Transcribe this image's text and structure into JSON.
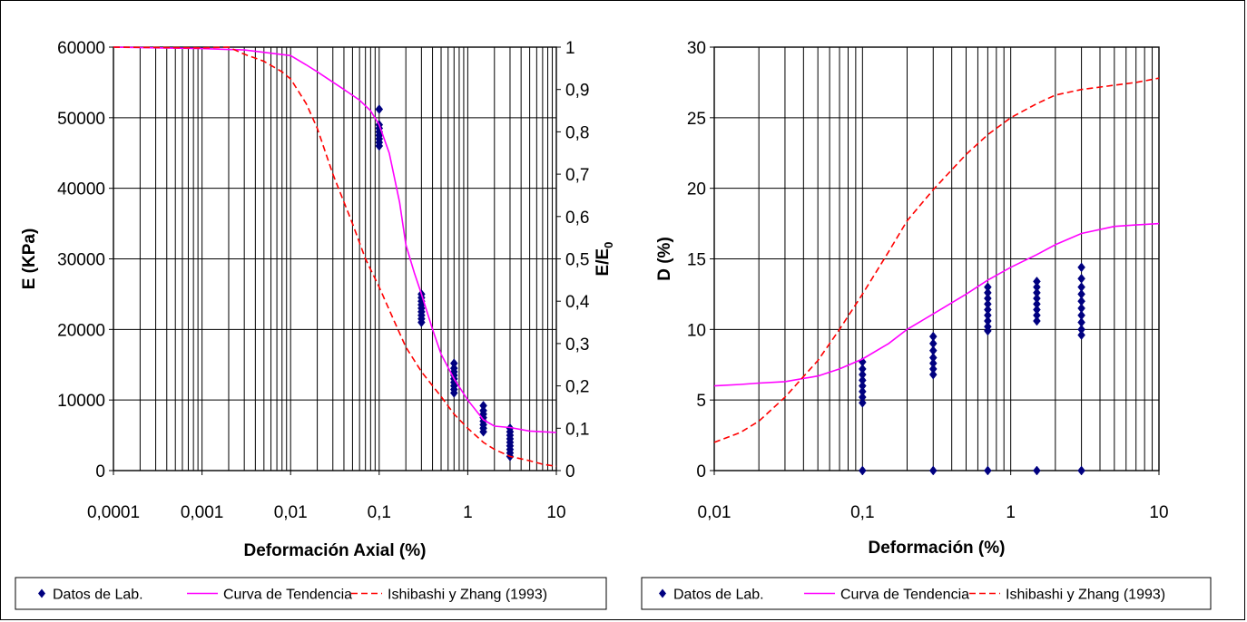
{
  "chart_data": [
    {
      "type": "scatter",
      "xscale": "log",
      "xlim": [
        0.0001,
        10
      ],
      "ylim": [
        0,
        60000
      ],
      "y2lim": [
        0,
        1
      ],
      "xlabel": "Deformación Axial (%)",
      "ylabel": "E (KPa)",
      "y2label_main": "E/E",
      "y2label_sub": "0",
      "xticks": [
        "0,0001",
        "0,001",
        "0,01",
        "0,1",
        "1",
        "10"
      ],
      "yticks": [
        "0",
        "10000",
        "20000",
        "30000",
        "40000",
        "50000",
        "60000"
      ],
      "y2ticks": [
        "0",
        "0,1",
        "0,2",
        "0,3",
        "0,4",
        "0,5",
        "0,6",
        "0,7",
        "0,8",
        "0,9",
        "1"
      ],
      "grid": true,
      "legend_position": "bottom",
      "legend": [
        "Datos de Lab.",
        "Curva de Tendencia",
        "Ishibashi y Zhang (1993)"
      ],
      "series": [
        {
          "name": "Datos de Lab.",
          "type": "scatter",
          "color": "#000080",
          "points": [
            [
              0.1,
              51200
            ],
            [
              0.1,
              49000
            ],
            [
              0.1,
              48500
            ],
            [
              0.1,
              48000
            ],
            [
              0.1,
              47500
            ],
            [
              0.1,
              47000
            ],
            [
              0.1,
              46500
            ],
            [
              0.1,
              46000
            ],
            [
              0.3,
              25000
            ],
            [
              0.3,
              24500
            ],
            [
              0.3,
              24000
            ],
            [
              0.3,
              23500
            ],
            [
              0.3,
              23000
            ],
            [
              0.3,
              22500
            ],
            [
              0.3,
              22000
            ],
            [
              0.3,
              21500
            ],
            [
              0.3,
              21000
            ],
            [
              0.7,
              15200
            ],
            [
              0.7,
              14500
            ],
            [
              0.7,
              14000
            ],
            [
              0.7,
              13500
            ],
            [
              0.7,
              13000
            ],
            [
              0.7,
              12500
            ],
            [
              0.7,
              12000
            ],
            [
              0.7,
              11500
            ],
            [
              0.7,
              11000
            ],
            [
              1.5,
              9200
            ],
            [
              1.5,
              8500
            ],
            [
              1.5,
              8000
            ],
            [
              1.5,
              7500
            ],
            [
              1.5,
              7000
            ],
            [
              1.5,
              6500
            ],
            [
              1.5,
              6000
            ],
            [
              1.5,
              5500
            ],
            [
              3,
              6000
            ],
            [
              3,
              5500
            ],
            [
              3,
              5000
            ],
            [
              3,
              4500
            ],
            [
              3,
              4000
            ],
            [
              3,
              3500
            ],
            [
              3,
              3000
            ],
            [
              3,
              2500
            ],
            [
              3,
              2000
            ]
          ]
        },
        {
          "name": "Curva de Tendencia",
          "type": "line",
          "color": "#ff00ff",
          "dash": "solid",
          "points": [
            [
              0.0001,
              60000
            ],
            [
              0.001,
              59800
            ],
            [
              0.003,
              59600
            ],
            [
              0.01,
              58800
            ],
            [
              0.015,
              57500
            ],
            [
              0.02,
              56500
            ],
            [
              0.04,
              54000
            ],
            [
              0.06,
              52500
            ],
            [
              0.08,
              51000
            ],
            [
              0.1,
              49000
            ],
            [
              0.13,
              45000
            ],
            [
              0.17,
              38000
            ],
            [
              0.2,
              32000
            ],
            [
              0.25,
              28000
            ],
            [
              0.3,
              25000
            ],
            [
              0.4,
              20000
            ],
            [
              0.5,
              16500
            ],
            [
              0.7,
              13000
            ],
            [
              1,
              10000
            ],
            [
              1.5,
              7200
            ],
            [
              2,
              6300
            ],
            [
              3,
              6100
            ],
            [
              5,
              5600
            ],
            [
              7,
              5500
            ],
            [
              10,
              5400
            ]
          ]
        },
        {
          "name": "Ishibashi y Zhang (1993)",
          "type": "line",
          "color": "#ff0000",
          "dash": "dashed",
          "points": [
            [
              0.0001,
              60000
            ],
            [
              0.001,
              59900
            ],
            [
              0.002,
              60000
            ],
            [
              0.003,
              59000
            ],
            [
              0.005,
              58000
            ],
            [
              0.008,
              56500
            ],
            [
              0.01,
              55500
            ],
            [
              0.015,
              52000
            ],
            [
              0.02,
              48500
            ],
            [
              0.03,
              42000
            ],
            [
              0.05,
              35000
            ],
            [
              0.07,
              30000
            ],
            [
              0.1,
              26000
            ],
            [
              0.15,
              21000
            ],
            [
              0.2,
              17500
            ],
            [
              0.3,
              14000
            ],
            [
              0.5,
              10500
            ],
            [
              0.7,
              8000
            ],
            [
              1,
              6000
            ],
            [
              1.5,
              4000
            ],
            [
              2,
              3000
            ],
            [
              3,
              2000
            ],
            [
              5,
              1400
            ],
            [
              7,
              900
            ],
            [
              10,
              600
            ]
          ]
        }
      ]
    },
    {
      "type": "scatter",
      "xscale": "log",
      "xlim": [
        0.01,
        10
      ],
      "ylim": [
        0,
        30
      ],
      "xlabel": "Deformación (%)",
      "ylabel": "D (%)",
      "xticks": [
        "0,01",
        "0,1",
        "1",
        "10"
      ],
      "yticks": [
        "0",
        "5",
        "10",
        "15",
        "20",
        "25",
        "30"
      ],
      "grid": true,
      "legend_position": "bottom",
      "legend": [
        "Datos de Lab.",
        "Curva de Tendencia",
        "Ishibashi y Zhang (1993)"
      ],
      "series": [
        {
          "name": "Datos de Lab.",
          "type": "scatter",
          "color": "#000080",
          "points": [
            [
              0.1,
              0
            ],
            [
              0.1,
              7.7
            ],
            [
              0.1,
              7.2
            ],
            [
              0.1,
              6.8
            ],
            [
              0.1,
              6.4
            ],
            [
              0.1,
              6.0
            ],
            [
              0.1,
              5.6
            ],
            [
              0.1,
              5.2
            ],
            [
              0.1,
              4.8
            ],
            [
              0.3,
              0
            ],
            [
              0.3,
              9.5
            ],
            [
              0.3,
              9.0
            ],
            [
              0.3,
              8.5
            ],
            [
              0.3,
              8.0
            ],
            [
              0.3,
              7.6
            ],
            [
              0.3,
              7.2
            ],
            [
              0.3,
              6.8
            ],
            [
              0.7,
              0
            ],
            [
              0.7,
              13.0
            ],
            [
              0.7,
              12.6
            ],
            [
              0.7,
              12.2
            ],
            [
              0.7,
              11.8
            ],
            [
              0.7,
              11.4
            ],
            [
              0.7,
              11.0
            ],
            [
              0.7,
              10.6
            ],
            [
              0.7,
              10.2
            ],
            [
              0.7,
              9.9
            ],
            [
              1.5,
              0
            ],
            [
              1.5,
              13.4
            ],
            [
              1.5,
              13.0
            ],
            [
              1.5,
              12.6
            ],
            [
              1.5,
              12.2
            ],
            [
              1.5,
              11.8
            ],
            [
              1.5,
              11.4
            ],
            [
              1.5,
              11.0
            ],
            [
              1.5,
              10.6
            ],
            [
              3,
              0
            ],
            [
              3,
              14.4
            ],
            [
              3,
              13.6
            ],
            [
              3,
              13.0
            ],
            [
              3,
              12.5
            ],
            [
              3,
              12.0
            ],
            [
              3,
              11.5
            ],
            [
              3,
              11.0
            ],
            [
              3,
              10.5
            ],
            [
              3,
              10.0
            ],
            [
              3,
              9.6
            ]
          ]
        },
        {
          "name": "Curva de Tendencia",
          "type": "line",
          "color": "#ff00ff",
          "dash": "solid",
          "points": [
            [
              0.01,
              6.0
            ],
            [
              0.015,
              6.1
            ],
            [
              0.02,
              6.2
            ],
            [
              0.03,
              6.3
            ],
            [
              0.05,
              6.7
            ],
            [
              0.07,
              7.2
            ],
            [
              0.1,
              7.9
            ],
            [
              0.15,
              9.0
            ],
            [
              0.2,
              10.0
            ],
            [
              0.3,
              11.1
            ],
            [
              0.5,
              12.5
            ],
            [
              0.7,
              13.5
            ],
            [
              1,
              14.4
            ],
            [
              1.5,
              15.3
            ],
            [
              2,
              16.0
            ],
            [
              3,
              16.8
            ],
            [
              5,
              17.3
            ],
            [
              7,
              17.4
            ],
            [
              10,
              17.5
            ]
          ]
        },
        {
          "name": "Ishibashi y Zhang (1993)",
          "type": "line",
          "color": "#ff0000",
          "dash": "dashed",
          "points": [
            [
              0.01,
              2.0
            ],
            [
              0.015,
              2.7
            ],
            [
              0.02,
              3.5
            ],
            [
              0.03,
              5.2
            ],
            [
              0.05,
              7.8
            ],
            [
              0.07,
              10.0
            ],
            [
              0.1,
              12.5
            ],
            [
              0.15,
              15.5
            ],
            [
              0.2,
              17.7
            ],
            [
              0.3,
              19.9
            ],
            [
              0.5,
              22.4
            ],
            [
              0.7,
              23.8
            ],
            [
              1,
              25.0
            ],
            [
              1.5,
              26.0
            ],
            [
              2,
              26.6
            ],
            [
              3,
              27.0
            ],
            [
              5,
              27.3
            ],
            [
              7,
              27.5
            ],
            [
              10,
              27.8
            ]
          ]
        }
      ]
    }
  ]
}
